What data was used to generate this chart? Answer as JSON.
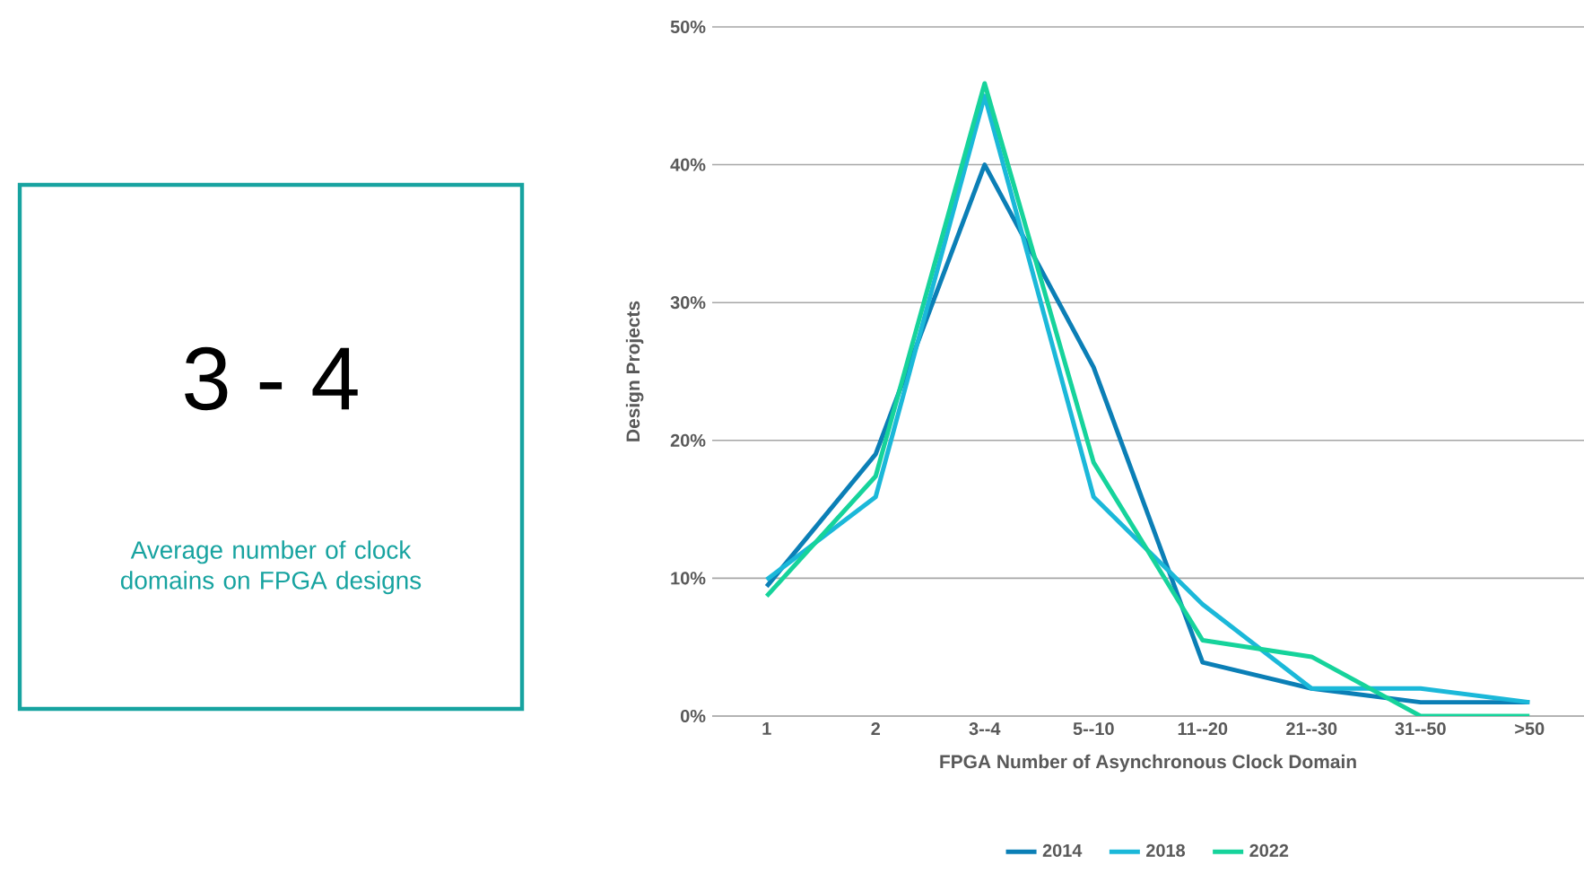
{
  "chart_data": [
    {
      "type": "other",
      "title": "3 - 4",
      "color": "#17a3a0",
      "annotations": [
        "Average number of clock domains on FPGA designs"
      ]
    },
    {
      "type": "line",
      "xlabel": "FPGA Number of Asynchronous Clock Domain",
      "ylabel": "Design Projects",
      "categories": [
        "1",
        "2",
        "3--4",
        "5--10",
        "11--20",
        "21--30",
        "31--50",
        ">50"
      ],
      "series": [
        {
          "name": "2014",
          "color": "#0b7fb6",
          "values": [
            9.4,
            19,
            40,
            25.3,
            3.9,
            2,
            1,
            1
          ]
        },
        {
          "name": "2018",
          "color": "#1bb8d9",
          "values": [
            9.9,
            15.9,
            45,
            15.9,
            8.1,
            2,
            2,
            1
          ]
        },
        {
          "name": "2022",
          "color": "#16d39b",
          "values": [
            8.7,
            17.4,
            45.9,
            18.4,
            5.5,
            4.3,
            0,
            0
          ]
        }
      ],
      "ylim": [
        0,
        50
      ],
      "yticks": [
        {
          "value": 0,
          "label": "0%"
        },
        {
          "value": 10,
          "label": "10%"
        },
        {
          "value": 20,
          "label": "20%"
        },
        {
          "value": 30,
          "label": "30%"
        },
        {
          "value": 40,
          "label": "40%"
        },
        {
          "value": 50,
          "label": "50%"
        }
      ],
      "grid": "y",
      "legend": "bottom"
    }
  ]
}
